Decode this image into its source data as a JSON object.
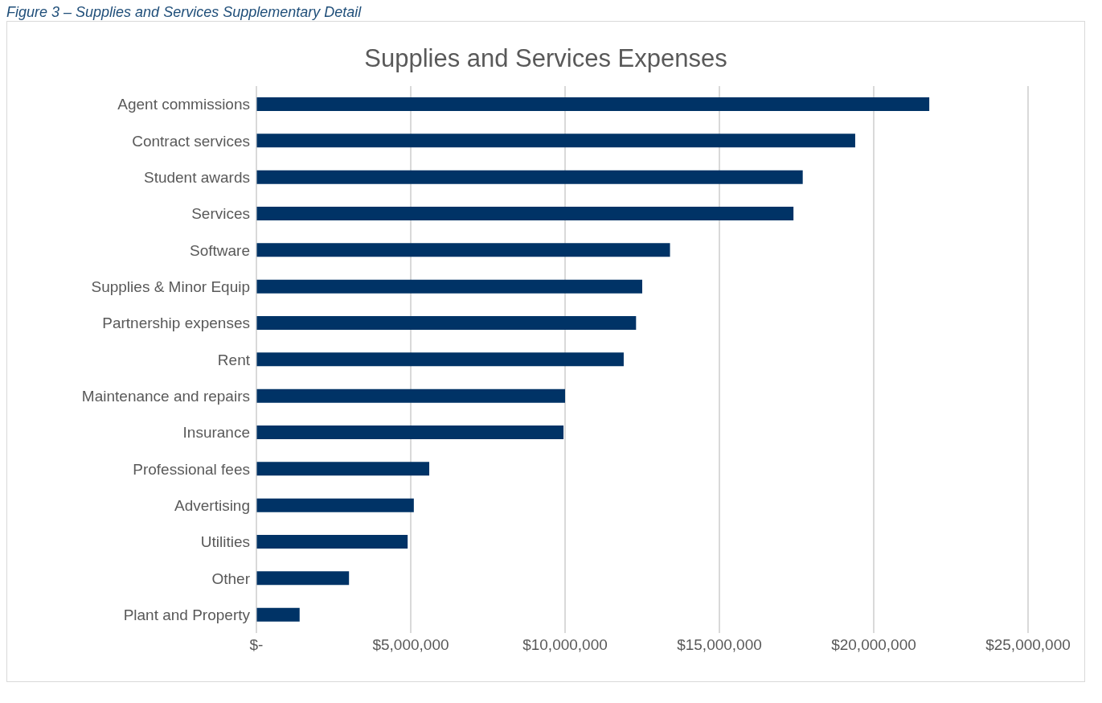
{
  "chart_data": {
    "type": "bar",
    "orientation": "horizontal",
    "title": "Supplies and Services Expenses",
    "annotations": [
      "Figure 3 – Supplies and Services Supplementary Detail"
    ],
    "categories": [
      "Agent commissions",
      "Contract services",
      "Student awards",
      "Services",
      "Software",
      "Supplies & Minor Equip",
      "Partnership expenses",
      "Rent",
      "Maintenance and repairs",
      "Insurance",
      "Professional fees",
      "Advertising",
      "Utilities",
      "Other",
      "Plant and Property"
    ],
    "values": [
      21800000,
      19400000,
      17700000,
      17400000,
      13400000,
      12500000,
      12300000,
      11900000,
      10000000,
      9950000,
      5600000,
      5100000,
      4900000,
      3000000,
      1400000
    ],
    "color": "#003366",
    "xlim": [
      0,
      25000000
    ],
    "xticks": [
      {
        "value": 0,
        "label": "$-"
      },
      {
        "value": 5000000,
        "label": "$5,000,000"
      },
      {
        "value": 10000000,
        "label": "$10,000,000"
      },
      {
        "value": 15000000,
        "label": "$15,000,000"
      },
      {
        "value": 20000000,
        "label": "$20,000,000"
      },
      {
        "value": 25000000,
        "label": "$25,000,000"
      }
    ],
    "grid": "x",
    "legend": false
  }
}
